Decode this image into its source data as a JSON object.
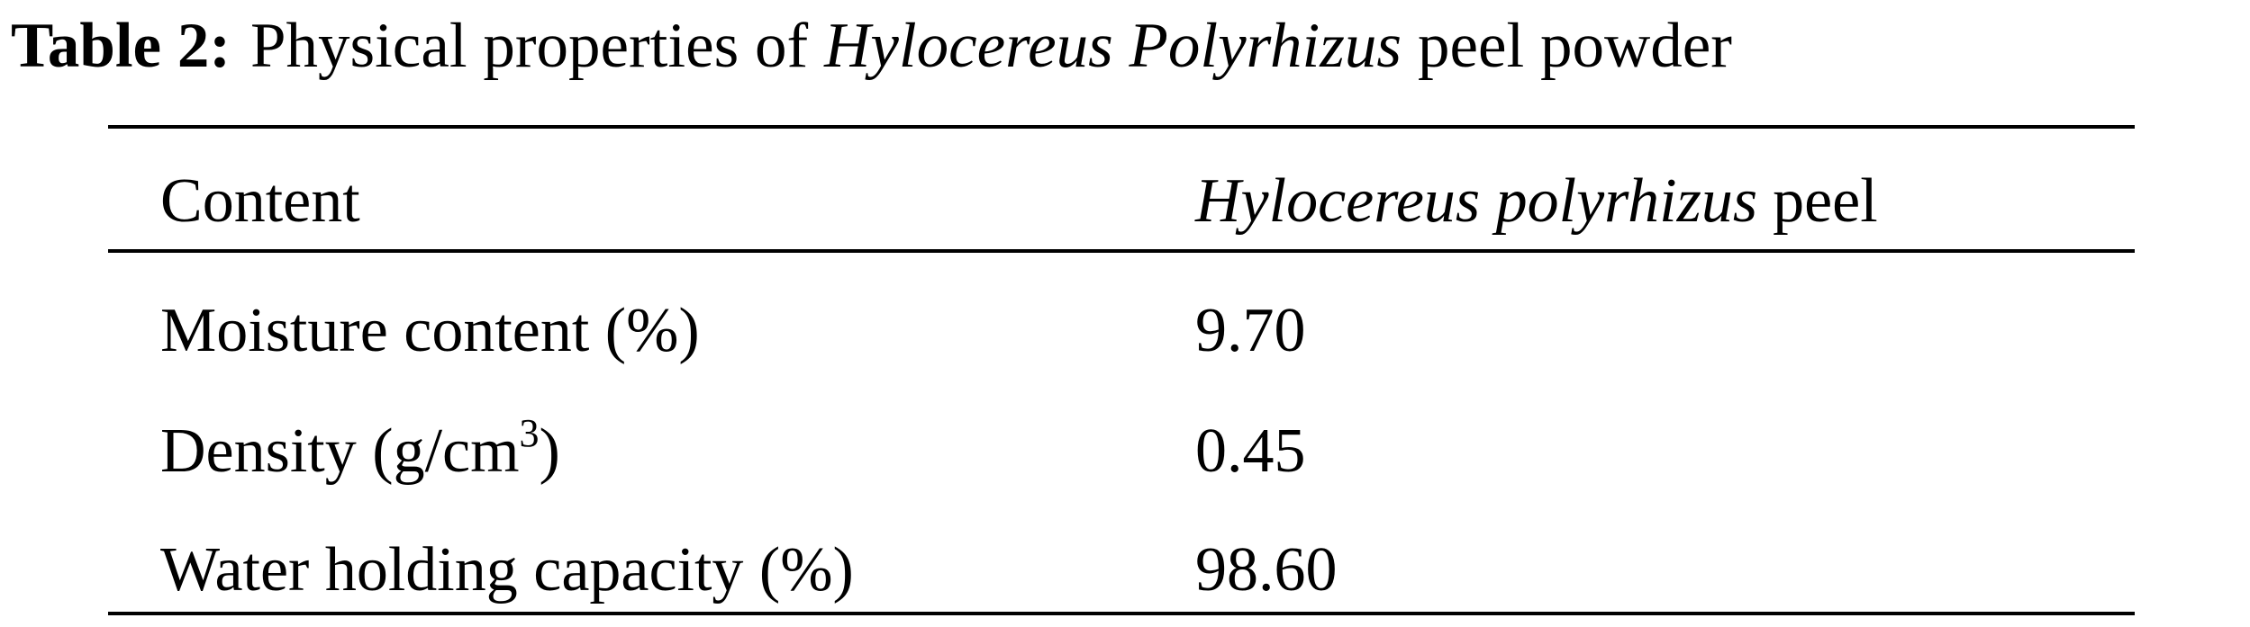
{
  "title": {
    "label": "Table 2:",
    "text": "Physical properties of",
    "species": "Hylocereus Polyrhizus",
    "suffix": "peel powder"
  },
  "table": {
    "header": {
      "col1": "Content",
      "col2_species": "Hylocereus polyrhizus",
      "col2_suffix": "peel"
    },
    "rows": [
      {
        "name": [
          "Moisture content (%)"
        ],
        "value": "9.70"
      },
      {
        "name": [
          "Density (g/cm",
          "3",
          ")"
        ],
        "value": "0.45"
      },
      {
        "name": [
          "Water holding capacity (%)"
        ],
        "value": "98.60"
      }
    ]
  }
}
